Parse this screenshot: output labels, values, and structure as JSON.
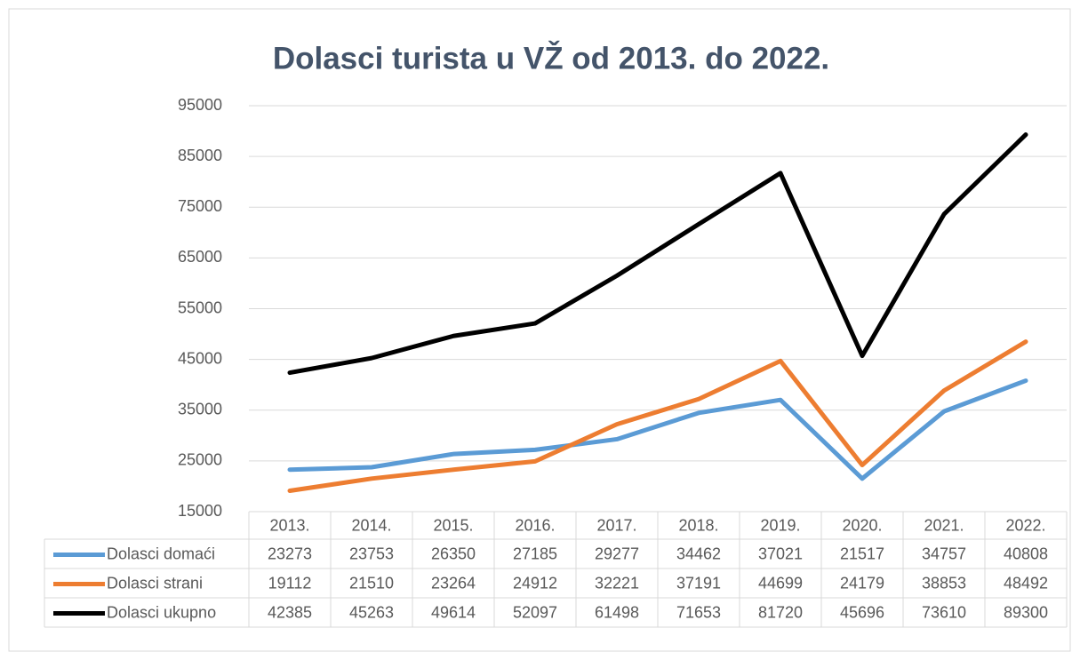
{
  "chart_data": {
    "type": "line",
    "title": "Dolasci turista u VŽ od 2013. do 2022.",
    "categories": [
      "2013.",
      "2014.",
      "2015.",
      "2016.",
      "2017.",
      "2018.",
      "2019.",
      "2020.",
      "2021.",
      "2022."
    ],
    "series": [
      {
        "name": "Dolasci domaći",
        "color": "#5b9bd5",
        "values": [
          23273,
          23753,
          26350,
          27185,
          29277,
          34462,
          37021,
          21517,
          34757,
          40808
        ]
      },
      {
        "name": "Dolasci strani",
        "color": "#ed7d31",
        "values": [
          19112,
          21510,
          23264,
          24912,
          32221,
          37191,
          44699,
          24179,
          38853,
          48492
        ]
      },
      {
        "name": "Dolasci ukupno",
        "color": "#000000",
        "values": [
          42385,
          45263,
          49614,
          52097,
          61498,
          71653,
          81720,
          45696,
          73610,
          89300
        ]
      }
    ],
    "ylim": [
      15000,
      95000
    ],
    "yticks": [
      15000,
      25000,
      35000,
      45000,
      55000,
      65000,
      75000,
      85000,
      95000
    ],
    "grid": true,
    "data_table": true
  }
}
